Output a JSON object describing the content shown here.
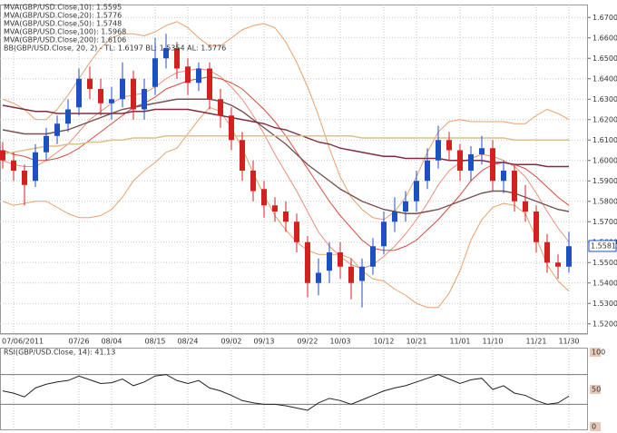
{
  "chart_data": [
    {
      "type": "candlestick",
      "categories": [
        null,
        "07/06/2011",
        null,
        null,
        null,
        null,
        null,
        "07/26",
        null,
        null,
        "08/04",
        null,
        null,
        null,
        "08/15",
        null,
        null,
        "08/24",
        null,
        null,
        null,
        "09/02",
        null,
        null,
        "09/13",
        null,
        null,
        null,
        "09/22",
        null,
        null,
        "10/03",
        null,
        null,
        null,
        "10/12",
        null,
        null,
        "10/21",
        null,
        null,
        null,
        "11/01",
        null,
        null,
        "11/10",
        null,
        null,
        null,
        "11/21",
        null,
        null,
        "11/30"
      ],
      "open": [
        1.605,
        1.6,
        1.595,
        1.59,
        1.604,
        1.612,
        1.618,
        1.626,
        1.64,
        1.635,
        1.628,
        1.63,
        1.64,
        1.625,
        1.636,
        1.65,
        1.655,
        1.646,
        1.638,
        1.645,
        1.63,
        1.622,
        1.61,
        1.595,
        1.586,
        1.578,
        1.575,
        1.57,
        1.56,
        1.54,
        1.546,
        1.555,
        1.548,
        1.541,
        1.548,
        1.558,
        1.57,
        1.575,
        1.58,
        1.59,
        1.6,
        1.61,
        1.605,
        1.595,
        1.603,
        1.606,
        1.59,
        1.595,
        1.58,
        1.575,
        1.56,
        1.55,
        1.548
      ],
      "high": [
        1.609,
        1.604,
        1.598,
        1.608,
        1.616,
        1.622,
        1.63,
        1.645,
        1.646,
        1.64,
        1.636,
        1.648,
        1.644,
        1.64,
        1.66,
        1.662,
        1.658,
        1.65,
        1.648,
        1.648,
        1.635,
        1.626,
        1.614,
        1.6,
        1.59,
        1.582,
        1.58,
        1.574,
        1.563,
        1.552,
        1.56,
        1.56,
        1.552,
        1.552,
        1.562,
        1.575,
        1.582,
        1.585,
        1.595,
        1.606,
        1.617,
        1.614,
        1.608,
        1.607,
        1.612,
        1.61,
        1.6,
        1.598,
        1.588,
        1.578,
        1.564,
        1.554,
        1.565
      ],
      "low": [
        1.596,
        1.59,
        1.578,
        1.587,
        1.6,
        1.608,
        1.614,
        1.622,
        1.63,
        1.622,
        1.62,
        1.626,
        1.62,
        1.62,
        1.632,
        1.645,
        1.64,
        1.632,
        1.634,
        1.625,
        1.616,
        1.605,
        1.59,
        1.58,
        1.572,
        1.57,
        1.565,
        1.555,
        1.533,
        1.534,
        1.54,
        1.542,
        1.532,
        1.528,
        1.544,
        1.554,
        1.565,
        1.57,
        1.575,
        1.586,
        1.596,
        1.6,
        1.59,
        1.59,
        1.598,
        1.585,
        1.584,
        1.575,
        1.57,
        1.555,
        1.545,
        1.542,
        1.545
      ],
      "close": [
        1.6,
        1.595,
        1.588,
        1.604,
        1.612,
        1.618,
        1.625,
        1.64,
        1.635,
        1.628,
        1.63,
        1.64,
        1.625,
        1.635,
        1.65,
        1.655,
        1.645,
        1.638,
        1.645,
        1.63,
        1.622,
        1.61,
        1.595,
        1.585,
        1.578,
        1.575,
        1.57,
        1.56,
        1.54,
        1.545,
        1.555,
        1.548,
        1.54,
        1.548,
        1.558,
        1.57,
        1.575,
        1.58,
        1.59,
        1.6,
        1.61,
        1.605,
        1.595,
        1.603,
        1.606,
        1.59,
        1.595,
        1.58,
        1.575,
        1.56,
        1.55,
        1.548,
        1.558
      ],
      "up_color": "#1f4fc4",
      "down_color": "#d42020",
      "ylim": [
        1.515,
        1.675
      ],
      "yticks": [
        {
          "value": 1.52,
          "label": "1.5200"
        },
        {
          "value": 1.53,
          "label": "1.5300"
        },
        {
          "value": 1.54,
          "label": "1.5400"
        },
        {
          "value": 1.55,
          "label": "1.5500"
        },
        {
          "value": 1.56,
          "label": "1.5600"
        },
        {
          "value": 1.57,
          "label": "1.5700"
        },
        {
          "value": 1.58,
          "label": "1.5800"
        },
        {
          "value": 1.59,
          "label": "1.5900"
        },
        {
          "value": 1.6,
          "label": "1.6000"
        },
        {
          "value": 1.61,
          "label": "1.6100"
        },
        {
          "value": 1.62,
          "label": "1.6200"
        },
        {
          "value": 1.63,
          "label": "1.6300"
        },
        {
          "value": 1.64,
          "label": "1.6400"
        },
        {
          "value": 1.65,
          "label": "1.6500"
        },
        {
          "value": 1.66,
          "label": "1.6600"
        },
        {
          "value": 1.67,
          "label": "1.6700"
        }
      ],
      "grid": true,
      "last_price": 1.55812,
      "series": [
        {
          "name": "MVA(GBP/USD.Close,10): 1.5595",
          "color": "#ec8f78",
          "values": [
            1.6,
            1.598,
            1.597,
            1.597,
            1.6,
            1.604,
            1.608,
            1.614,
            1.62,
            1.624,
            1.628,
            1.631,
            1.632,
            1.633,
            1.636,
            1.64,
            1.643,
            1.644,
            1.645,
            1.644,
            1.641,
            1.636,
            1.63,
            1.622,
            1.613,
            1.603,
            1.594,
            1.585,
            1.575,
            1.565,
            1.558,
            1.553,
            1.549,
            1.547,
            1.549,
            1.553,
            1.558,
            1.564,
            1.571,
            1.579,
            1.588,
            1.595,
            1.599,
            1.601,
            1.603,
            1.602,
            1.6,
            1.597,
            1.592,
            1.584,
            1.575,
            1.567,
            1.56
          ]
        },
        {
          "name": "MVA(GBP/USD.Close,20): 1.5776",
          "color": "#d84a3a",
          "values": [
            1.605,
            1.603,
            1.602,
            1.6,
            1.6,
            1.601,
            1.603,
            1.606,
            1.61,
            1.614,
            1.618,
            1.622,
            1.626,
            1.628,
            1.631,
            1.635,
            1.637,
            1.639,
            1.64,
            1.641,
            1.64,
            1.638,
            1.635,
            1.63,
            1.625,
            1.619,
            1.612,
            1.604,
            1.596,
            1.588,
            1.58,
            1.573,
            1.567,
            1.561,
            1.557,
            1.556,
            1.556,
            1.558,
            1.561,
            1.566,
            1.571,
            1.577,
            1.583,
            1.59,
            1.595,
            1.598,
            1.599,
            1.598,
            1.596,
            1.592,
            1.587,
            1.582,
            1.578
          ]
        },
        {
          "name": "MVA(GBP/USD.Close,50): 1.5748",
          "color": "#7a5050",
          "values": [
            1.615,
            1.614,
            1.613,
            1.613,
            1.613,
            1.614,
            1.615,
            1.617,
            1.619,
            1.621,
            1.623,
            1.625,
            1.626,
            1.627,
            1.628,
            1.629,
            1.63,
            1.63,
            1.63,
            1.63,
            1.629,
            1.627,
            1.624,
            1.62,
            1.616,
            1.612,
            1.608,
            1.603,
            1.598,
            1.594,
            1.59,
            1.586,
            1.583,
            1.58,
            1.578,
            1.576,
            1.575,
            1.574,
            1.574,
            1.575,
            1.576,
            1.578,
            1.58,
            1.582,
            1.584,
            1.585,
            1.585,
            1.584,
            1.582,
            1.58,
            1.578,
            1.576,
            1.575
          ]
        },
        {
          "name": "MVA(GBP/USD.Close,100): 1.5968",
          "color": "#7e2e40",
          "values": [
            1.627,
            1.626,
            1.625,
            1.624,
            1.624,
            1.623,
            1.623,
            1.623,
            1.623,
            1.623,
            1.623,
            1.623,
            1.624,
            1.624,
            1.625,
            1.625,
            1.625,
            1.625,
            1.624,
            1.623,
            1.622,
            1.621,
            1.62,
            1.619,
            1.618,
            1.616,
            1.615,
            1.613,
            1.611,
            1.609,
            1.608,
            1.606,
            1.605,
            1.604,
            1.603,
            1.602,
            1.602,
            1.601,
            1.601,
            1.601,
            1.601,
            1.6,
            1.6,
            1.6,
            1.6,
            1.599,
            1.599,
            1.598,
            1.598,
            1.598,
            1.597,
            1.597,
            1.597
          ]
        },
        {
          "name": "MVA(GBP/USD.Close,200): 1.6106",
          "color": "#dcc08a",
          "values": [
            1.603,
            1.604,
            1.605,
            1.606,
            1.607,
            1.607,
            1.608,
            1.608,
            1.609,
            1.609,
            1.61,
            1.61,
            1.611,
            1.611,
            1.611,
            1.612,
            1.612,
            1.612,
            1.612,
            1.612,
            1.612,
            1.612,
            1.612,
            1.612,
            1.612,
            1.612,
            1.612,
            1.612,
            1.612,
            1.612,
            1.612,
            1.612,
            1.612,
            1.611,
            1.611,
            1.611,
            1.611,
            1.611,
            1.611,
            1.611,
            1.611,
            1.611,
            1.611,
            1.611,
            1.611,
            1.611,
            1.611,
            1.61,
            1.61,
            1.61,
            1.61,
            1.61,
            1.61
          ]
        }
      ],
      "bands": {
        "name": "BB(GBP/USD.Close, 20, 2) - TL: 1.6197  BL: 1.5354  AL: 1.5776",
        "color": "#e9a06a",
        "upper": [
          1.63,
          1.628,
          1.625,
          1.62,
          1.62,
          1.625,
          1.632,
          1.64,
          1.648,
          1.655,
          1.66,
          1.662,
          1.662,
          1.661,
          1.663,
          1.666,
          1.668,
          1.665,
          1.66,
          1.656,
          1.656,
          1.66,
          1.664,
          1.666,
          1.667,
          1.665,
          1.658,
          1.648,
          1.636,
          1.622,
          1.606,
          1.592,
          1.582,
          1.576,
          1.572,
          1.571,
          1.575,
          1.582,
          1.592,
          1.604,
          1.614,
          1.619,
          1.62,
          1.619,
          1.619,
          1.619,
          1.619,
          1.618,
          1.618,
          1.622,
          1.625,
          1.623,
          1.62
        ],
        "lower": [
          1.58,
          1.578,
          1.579,
          1.58,
          1.58,
          1.577,
          1.574,
          1.572,
          1.572,
          1.573,
          1.576,
          1.582,
          1.59,
          1.595,
          1.599,
          1.604,
          1.606,
          1.613,
          1.62,
          1.626,
          1.624,
          1.616,
          1.606,
          1.594,
          1.583,
          1.573,
          1.566,
          1.56,
          1.556,
          1.554,
          1.554,
          1.554,
          1.552,
          1.546,
          1.542,
          1.541,
          1.537,
          1.534,
          1.53,
          1.528,
          1.528,
          1.535,
          1.546,
          1.561,
          1.571,
          1.577,
          1.579,
          1.578,
          1.574,
          1.562,
          1.549,
          1.541,
          1.536
        ]
      }
    },
    {
      "type": "line",
      "series": [
        {
          "name": "RSI(GBP/USD.Close, 14): 41.13",
          "color": "#222222",
          "values": [
            48,
            45,
            40,
            52,
            57,
            60,
            62,
            68,
            63,
            58,
            59,
            64,
            55,
            60,
            68,
            70,
            62,
            58,
            62,
            52,
            48,
            42,
            35,
            32,
            30,
            30,
            28,
            25,
            22,
            32,
            38,
            35,
            30,
            36,
            42,
            48,
            52,
            55,
            60,
            65,
            70,
            64,
            58,
            63,
            65,
            50,
            55,
            45,
            42,
            35,
            30,
            32,
            41
          ]
        }
      ],
      "ylim": [
        0,
        100
      ],
      "yticks": [
        0,
        50,
        100
      ],
      "levels": [
        30,
        70
      ]
    }
  ]
}
